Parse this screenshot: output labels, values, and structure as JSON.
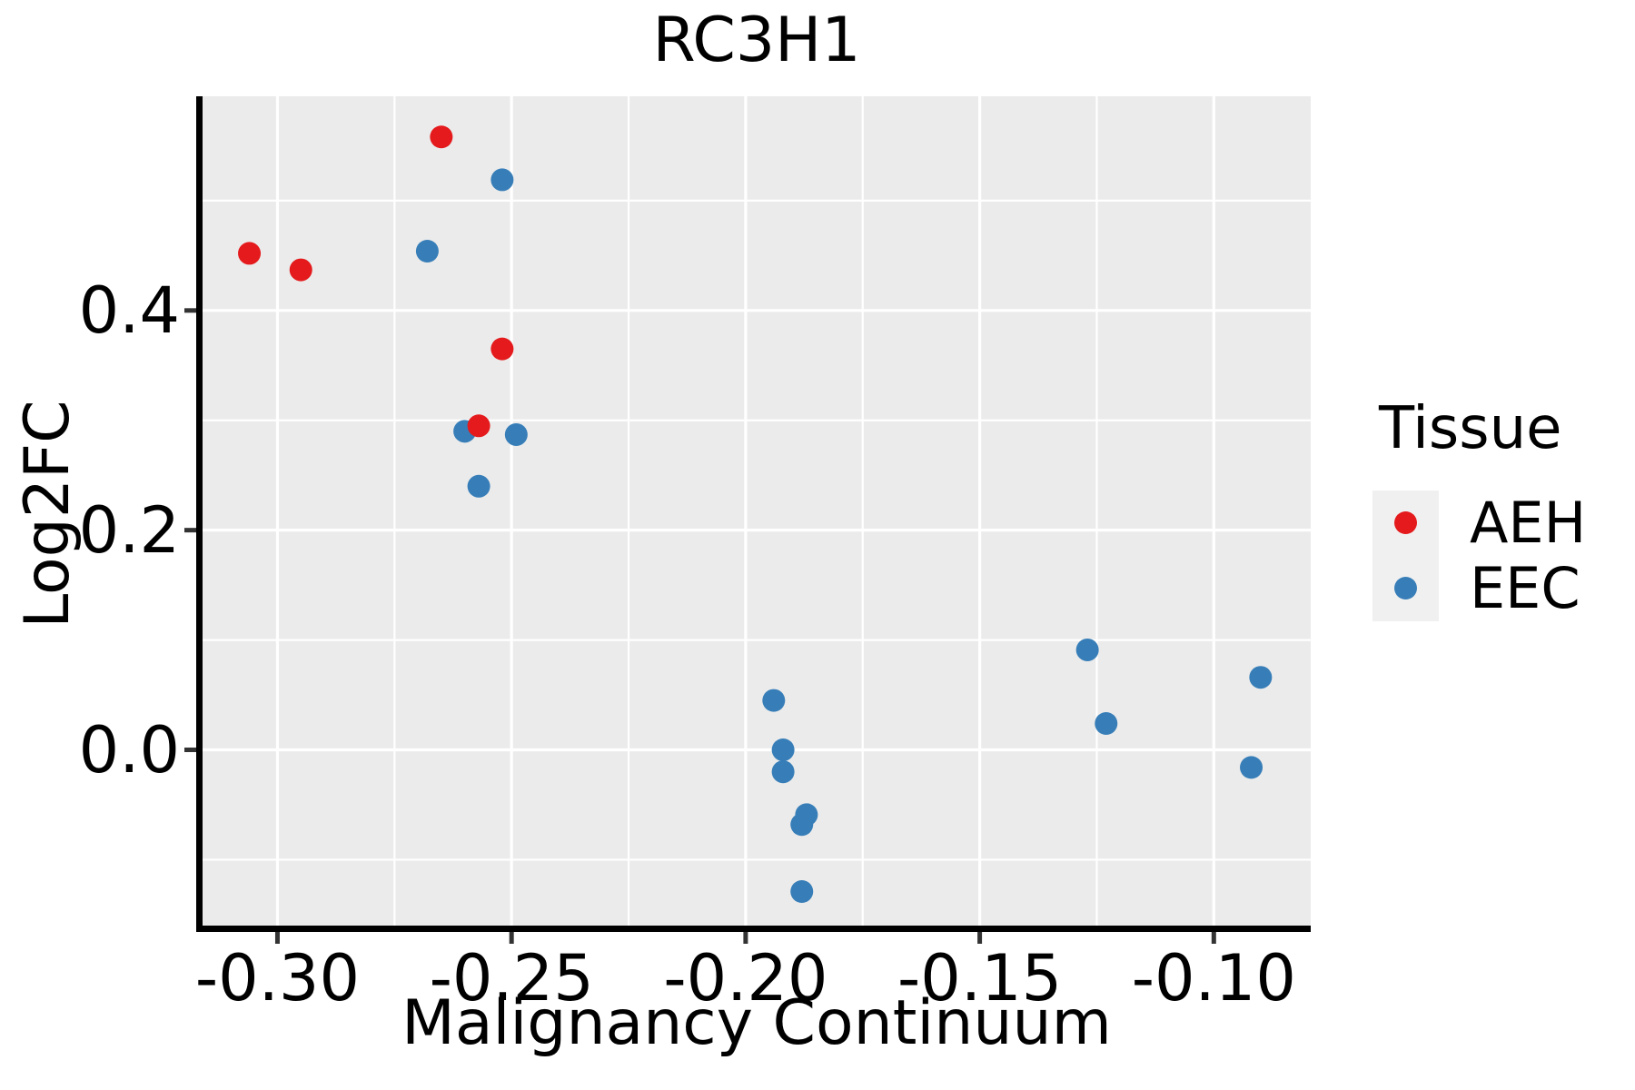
{
  "title": "RC3H1",
  "axes": {
    "x_label": "Malignancy Continuum",
    "y_label": "Log2FC",
    "x_ticks": [
      {
        "value": -0.3,
        "label": "-0.30"
      },
      {
        "value": -0.25,
        "label": "-0.25"
      },
      {
        "value": -0.2,
        "label": "-0.20"
      },
      {
        "value": -0.15,
        "label": "-0.15"
      },
      {
        "value": -0.1,
        "label": "-0.10"
      }
    ],
    "y_ticks": [
      {
        "value": 0.4,
        "label": "0.4"
      },
      {
        "value": 0.2,
        "label": "0.2"
      },
      {
        "value": 0.0,
        "label": "0.0"
      }
    ],
    "x_minor_gridlines": [
      -0.275,
      -0.225,
      -0.175,
      -0.125
    ],
    "y_minor_gridlines": [
      0.5,
      0.3,
      0.1,
      -0.1
    ],
    "xlim": [
      -0.316,
      -0.0793
    ],
    "ylim": [
      -0.16,
      0.595
    ]
  },
  "legend": {
    "title": "Tissue",
    "items": [
      {
        "label": "AEH",
        "color": "#e41a1c"
      },
      {
        "label": "EEC",
        "color": "#377eb8"
      }
    ]
  },
  "style": {
    "panel_bg": "#ebebeb",
    "grid_color": "#ffffff",
    "axis_color": "#000000",
    "tick_color": "#333333",
    "legend_key_bg": "#f0f0f0",
    "point_radius": 12.5
  },
  "chart_data": {
    "type": "scatter",
    "title": "RC3H1",
    "xlabel": "Malignancy Continuum",
    "ylabel": "Log2FC",
    "xlim": [
      -0.316,
      -0.0793
    ],
    "ylim": [
      -0.16,
      0.595
    ],
    "grid": true,
    "legend_position": "right",
    "series": [
      {
        "name": "EEC",
        "color": "#377eb8",
        "points": [
          [
            -0.268,
            0.454
          ],
          [
            -0.26,
            0.29
          ],
          [
            -0.257,
            0.24
          ],
          [
            -0.252,
            0.519
          ],
          [
            -0.249,
            0.287
          ],
          [
            -0.194,
            0.045
          ],
          [
            -0.192,
            0.0
          ],
          [
            -0.192,
            -0.02
          ],
          [
            -0.187,
            -0.059
          ],
          [
            -0.188,
            -0.068
          ],
          [
            -0.188,
            -0.129
          ],
          [
            -0.127,
            0.091
          ],
          [
            -0.123,
            0.024
          ],
          [
            -0.092,
            -0.016
          ],
          [
            -0.09,
            0.066
          ]
        ]
      },
      {
        "name": "AEH",
        "color": "#e41a1c",
        "points": [
          [
            -0.306,
            0.452
          ],
          [
            -0.295,
            0.437
          ],
          [
            -0.265,
            0.558
          ],
          [
            -0.257,
            0.295
          ],
          [
            -0.252,
            0.365
          ]
        ]
      }
    ]
  }
}
